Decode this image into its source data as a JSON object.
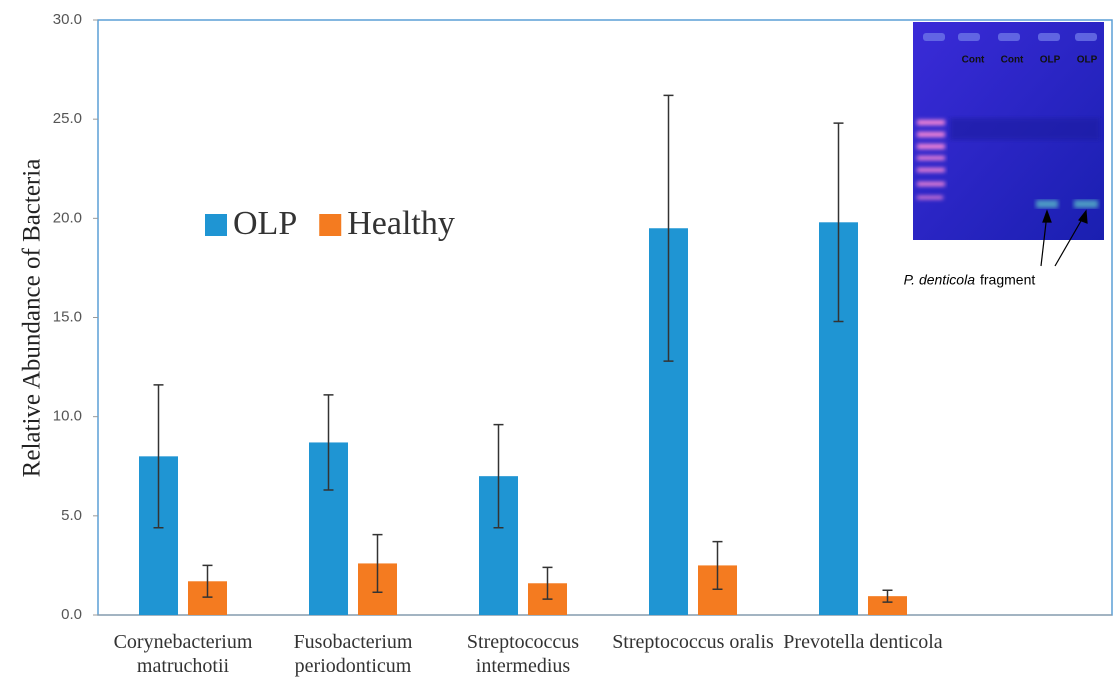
{
  "chart_data": {
    "type": "bar",
    "y_label": "Relative Abundance of Bacteria",
    "categories": [
      "Corynebacterium matruchotii",
      "Fusobacterium periodonticum",
      "Streptococcus intermedius",
      "Streptococcus oralis",
      "Prevotella denticola"
    ],
    "series": [
      {
        "name": "OLP",
        "color": "#1f95d3",
        "values": [
          8.0,
          8.7,
          7.0,
          19.5,
          19.8
        ],
        "errors": [
          3.6,
          2.4,
          2.6,
          6.7,
          5.0
        ]
      },
      {
        "name": "Healthy",
        "color": "#f47b20",
        "values": [
          1.7,
          2.6,
          1.6,
          2.5,
          0.95
        ],
        "errors": [
          0.8,
          1.45,
          0.8,
          1.2,
          0.3
        ]
      }
    ],
    "ylim": [
      0,
      30
    ],
    "yticks": [
      {
        "value": 0,
        "label": "0.0"
      },
      {
        "value": 5,
        "label": "5.0"
      },
      {
        "value": 10,
        "label": "10.0"
      },
      {
        "value": 15,
        "label": "15.0"
      },
      {
        "value": 20,
        "label": "20.0"
      },
      {
        "value": 25,
        "label": "25.0"
      },
      {
        "value": 30,
        "label": "30.0"
      }
    ],
    "inset": {
      "lane_labels": [
        "Cont",
        "Cont",
        "OLP",
        "OLP"
      ],
      "annotation_species": "P. denticola",
      "annotation_text": "fragment"
    }
  }
}
